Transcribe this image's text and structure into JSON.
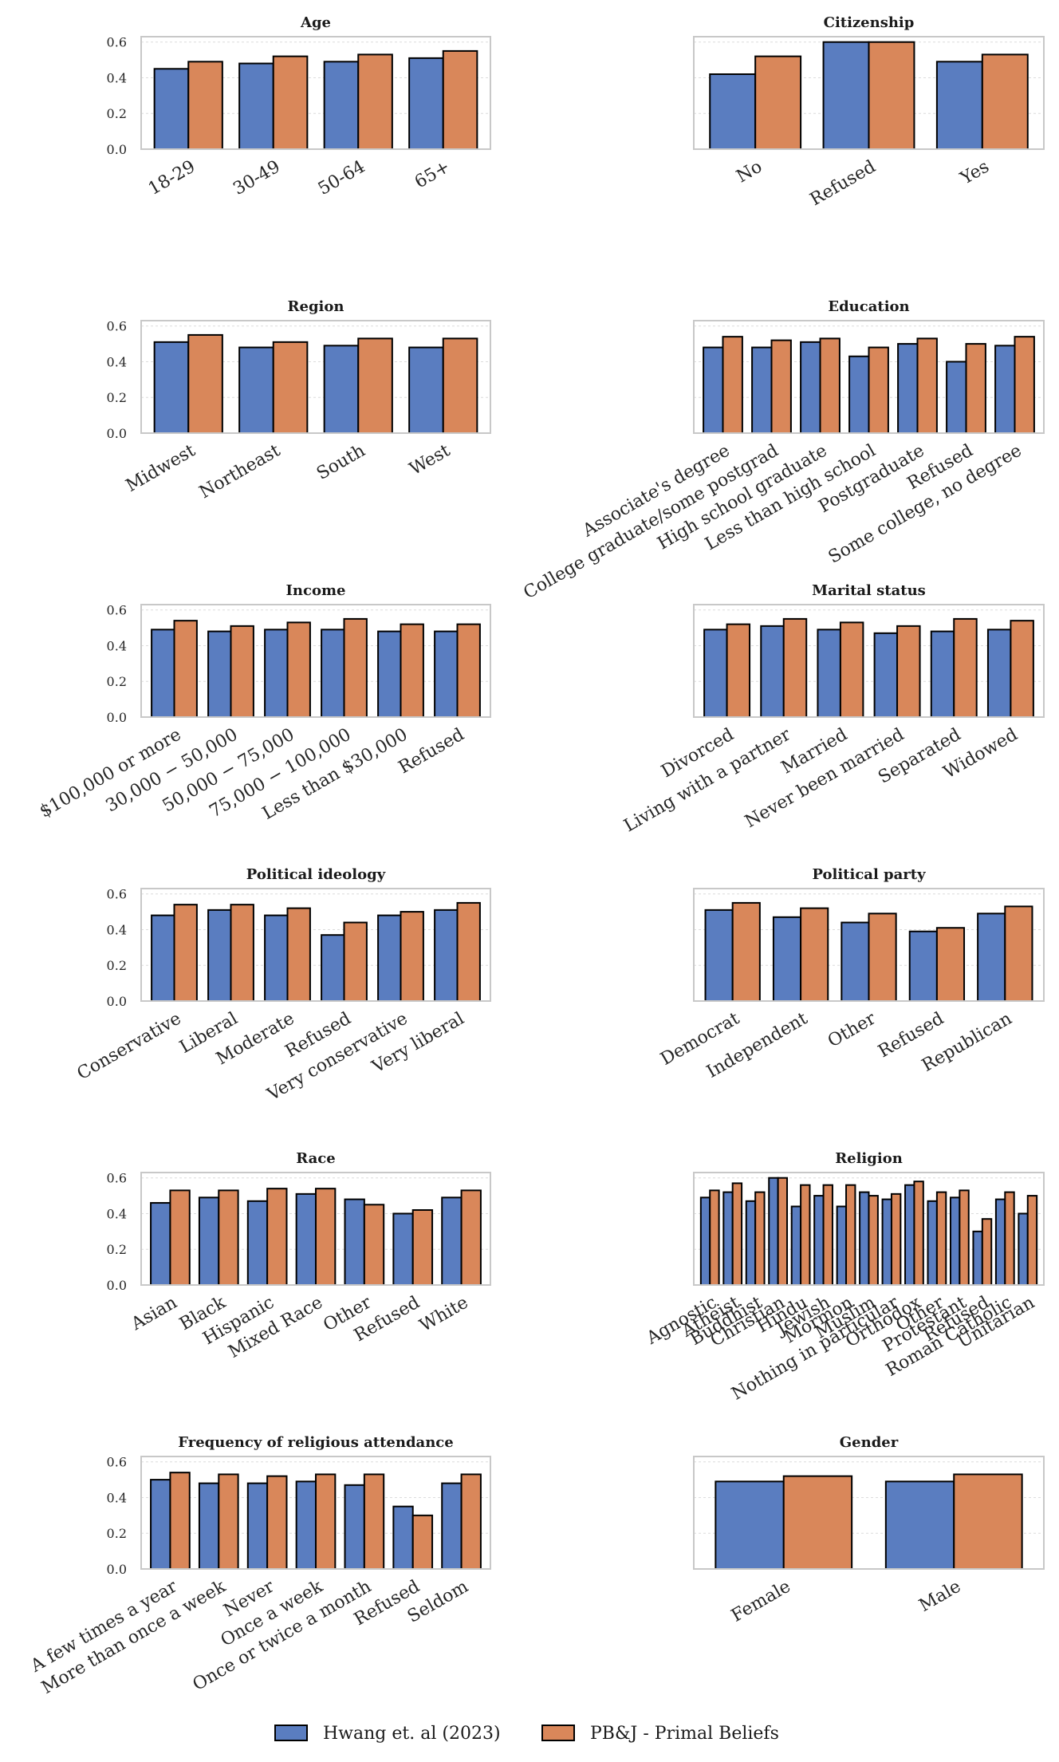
{
  "colors": {
    "series0": "#5a7dc0",
    "series1": "#d9875a"
  },
  "legend": [
    {
      "label": "Hwang et. al (2023)",
      "color": "#5a7dc0"
    },
    {
      "label": "PB&J - Primal Beliefs",
      "color": "#d9875a"
    }
  ],
  "chart_data": [
    {
      "type": "bar",
      "title": "Age",
      "ylim": [
        0,
        0.63
      ],
      "yticks": [
        "0.0",
        "0.2",
        "0.4",
        "0.6"
      ],
      "show_yticks": true,
      "categories": [
        "18-29",
        "30-49",
        "50-64",
        "65+"
      ],
      "series": [
        {
          "name": "Hwang et. al (2023)",
          "values": [
            0.45,
            0.48,
            0.49,
            0.51
          ]
        },
        {
          "name": "PB&J - Primal Beliefs",
          "values": [
            0.49,
            0.52,
            0.53,
            0.55
          ]
        }
      ]
    },
    {
      "type": "bar",
      "title": "Citizenship",
      "ylim": [
        0,
        0.63
      ],
      "yticks": [
        "0.0",
        "0.2",
        "0.4",
        "0.6"
      ],
      "show_yticks": false,
      "categories": [
        "No",
        "Refused",
        "Yes"
      ],
      "series": [
        {
          "name": "Hwang et. al (2023)",
          "values": [
            0.42,
            0.6,
            0.49
          ]
        },
        {
          "name": "PB&J - Primal Beliefs",
          "values": [
            0.52,
            0.6,
            0.53
          ]
        }
      ]
    },
    {
      "type": "bar",
      "title": "Region",
      "ylim": [
        0,
        0.63
      ],
      "yticks": [
        "0.0",
        "0.2",
        "0.4",
        "0.6"
      ],
      "show_yticks": true,
      "categories": [
        "Midwest",
        "Northeast",
        "South",
        "West"
      ],
      "series": [
        {
          "name": "Hwang et. al (2023)",
          "values": [
            0.51,
            0.48,
            0.49,
            0.48
          ]
        },
        {
          "name": "PB&J - Primal Beliefs",
          "values": [
            0.55,
            0.51,
            0.53,
            0.53
          ]
        }
      ]
    },
    {
      "type": "bar",
      "title": "Education",
      "ylim": [
        0,
        0.63
      ],
      "yticks": [
        "0.0",
        "0.2",
        "0.4",
        "0.6"
      ],
      "show_yticks": false,
      "categories": [
        "Associate's degree",
        "College graduate/some postgrad",
        "High school graduate",
        "Less than high school",
        "Postgraduate",
        "Refused",
        "Some college, no degree"
      ],
      "series": [
        {
          "name": "Hwang et. al (2023)",
          "values": [
            0.48,
            0.48,
            0.51,
            0.43,
            0.5,
            0.4,
            0.49
          ]
        },
        {
          "name": "PB&J - Primal Beliefs",
          "values": [
            0.54,
            0.52,
            0.53,
            0.48,
            0.53,
            0.5,
            0.54
          ]
        }
      ]
    },
    {
      "type": "bar",
      "title": "Income",
      "ylim": [
        0,
        0.63
      ],
      "yticks": [
        "0.0",
        "0.2",
        "0.4",
        "0.6"
      ],
      "show_yticks": true,
      "categories": [
        "$100,000 or more",
        "30,000 − 50,000",
        "50,000 − 75,000",
        "75,000 − 100,000",
        "Less than $30,000",
        "Refused"
      ],
      "series": [
        {
          "name": "Hwang et. al (2023)",
          "values": [
            0.49,
            0.48,
            0.49,
            0.49,
            0.48,
            0.48
          ]
        },
        {
          "name": "PB&J - Primal Beliefs",
          "values": [
            0.54,
            0.51,
            0.53,
            0.55,
            0.52,
            0.52
          ]
        }
      ]
    },
    {
      "type": "bar",
      "title": "Marital status",
      "ylim": [
        0,
        0.63
      ],
      "yticks": [
        "0.0",
        "0.2",
        "0.4",
        "0.6"
      ],
      "show_yticks": false,
      "categories": [
        "Divorced",
        "Living with a partner",
        "Married",
        "Never been married",
        "Separated",
        "Widowed"
      ],
      "series": [
        {
          "name": "Hwang et. al (2023)",
          "values": [
            0.49,
            0.51,
            0.49,
            0.47,
            0.48,
            0.49
          ]
        },
        {
          "name": "PB&J - Primal Beliefs",
          "values": [
            0.52,
            0.55,
            0.53,
            0.51,
            0.55,
            0.54
          ]
        }
      ]
    },
    {
      "type": "bar",
      "title": "Political ideology",
      "ylim": [
        0,
        0.63
      ],
      "yticks": [
        "0.0",
        "0.2",
        "0.4",
        "0.6"
      ],
      "show_yticks": true,
      "categories": [
        "Conservative",
        "Liberal",
        "Moderate",
        "Refused",
        "Very conservative",
        "Very liberal"
      ],
      "series": [
        {
          "name": "Hwang et. al (2023)",
          "values": [
            0.48,
            0.51,
            0.48,
            0.37,
            0.48,
            0.51
          ]
        },
        {
          "name": "PB&J - Primal Beliefs",
          "values": [
            0.54,
            0.54,
            0.52,
            0.44,
            0.5,
            0.55
          ]
        }
      ]
    },
    {
      "type": "bar",
      "title": "Political party",
      "ylim": [
        0,
        0.63
      ],
      "yticks": [
        "0.0",
        "0.2",
        "0.4",
        "0.6"
      ],
      "show_yticks": false,
      "categories": [
        "Democrat",
        "Independent",
        "Other",
        "Refused",
        "Republican"
      ],
      "series": [
        {
          "name": "Hwang et. al (2023)",
          "values": [
            0.51,
            0.47,
            0.44,
            0.39,
            0.49
          ]
        },
        {
          "name": "PB&J - Primal Beliefs",
          "values": [
            0.55,
            0.52,
            0.49,
            0.41,
            0.53
          ]
        }
      ]
    },
    {
      "type": "bar",
      "title": "Race",
      "ylim": [
        0,
        0.63
      ],
      "yticks": [
        "0.0",
        "0.2",
        "0.4",
        "0.6"
      ],
      "show_yticks": true,
      "categories": [
        "Asian",
        "Black",
        "Hispanic",
        "Mixed Race",
        "Other",
        "Refused",
        "White"
      ],
      "series": [
        {
          "name": "Hwang et. al (2023)",
          "values": [
            0.46,
            0.49,
            0.47,
            0.51,
            0.48,
            0.4,
            0.49
          ]
        },
        {
          "name": "PB&J - Primal Beliefs",
          "values": [
            0.53,
            0.53,
            0.54,
            0.54,
            0.45,
            0.42,
            0.53
          ]
        }
      ]
    },
    {
      "type": "bar",
      "title": "Religion",
      "ylim": [
        0,
        0.63
      ],
      "yticks": [
        "0.0",
        "0.2",
        "0.4",
        "0.6"
      ],
      "show_yticks": false,
      "categories": [
        "Agnostic",
        "Atheist",
        "Buddhist",
        "Christian",
        "Hindu",
        "Jewish",
        "Mormon",
        "Muslim",
        "Nothing in particular",
        "Orthodox",
        "Other",
        "Protestant",
        "Refused",
        "Roman Catholic",
        "Unitarian"
      ],
      "series": [
        {
          "name": "Hwang et. al (2023)",
          "values": [
            0.49,
            0.52,
            0.47,
            0.6,
            0.44,
            0.5,
            0.44,
            0.52,
            0.48,
            0.56,
            0.47,
            0.49,
            0.3,
            0.48,
            0.4
          ]
        },
        {
          "name": "PB&J - Primal Beliefs",
          "values": [
            0.53,
            0.57,
            0.52,
            0.6,
            0.56,
            0.56,
            0.56,
            0.5,
            0.51,
            0.58,
            0.52,
            0.53,
            0.37,
            0.52,
            0.5
          ]
        }
      ]
    },
    {
      "type": "bar",
      "title": "Frequency of religious attendance",
      "ylim": [
        0,
        0.63
      ],
      "yticks": [
        "0.0",
        "0.2",
        "0.4",
        "0.6"
      ],
      "show_yticks": true,
      "categories": [
        "A few times a year",
        "More than once a week",
        "Never",
        "Once a week",
        "Once or twice a month",
        "Refused",
        "Seldom"
      ],
      "series": [
        {
          "name": "Hwang et. al (2023)",
          "values": [
            0.5,
            0.48,
            0.48,
            0.49,
            0.47,
            0.35,
            0.48
          ]
        },
        {
          "name": "PB&J - Primal Beliefs",
          "values": [
            0.54,
            0.53,
            0.52,
            0.53,
            0.53,
            0.3,
            0.53
          ]
        }
      ]
    },
    {
      "type": "bar",
      "title": "Gender",
      "ylim": [
        0,
        0.63
      ],
      "yticks": [
        "0.0",
        "0.2",
        "0.4",
        "0.6"
      ],
      "show_yticks": false,
      "categories": [
        "Female",
        "Male"
      ],
      "series": [
        {
          "name": "Hwang et. al (2023)",
          "values": [
            0.49,
            0.49
          ]
        },
        {
          "name": "PB&J - Primal Beliefs",
          "values": [
            0.52,
            0.53
          ]
        }
      ]
    }
  ]
}
